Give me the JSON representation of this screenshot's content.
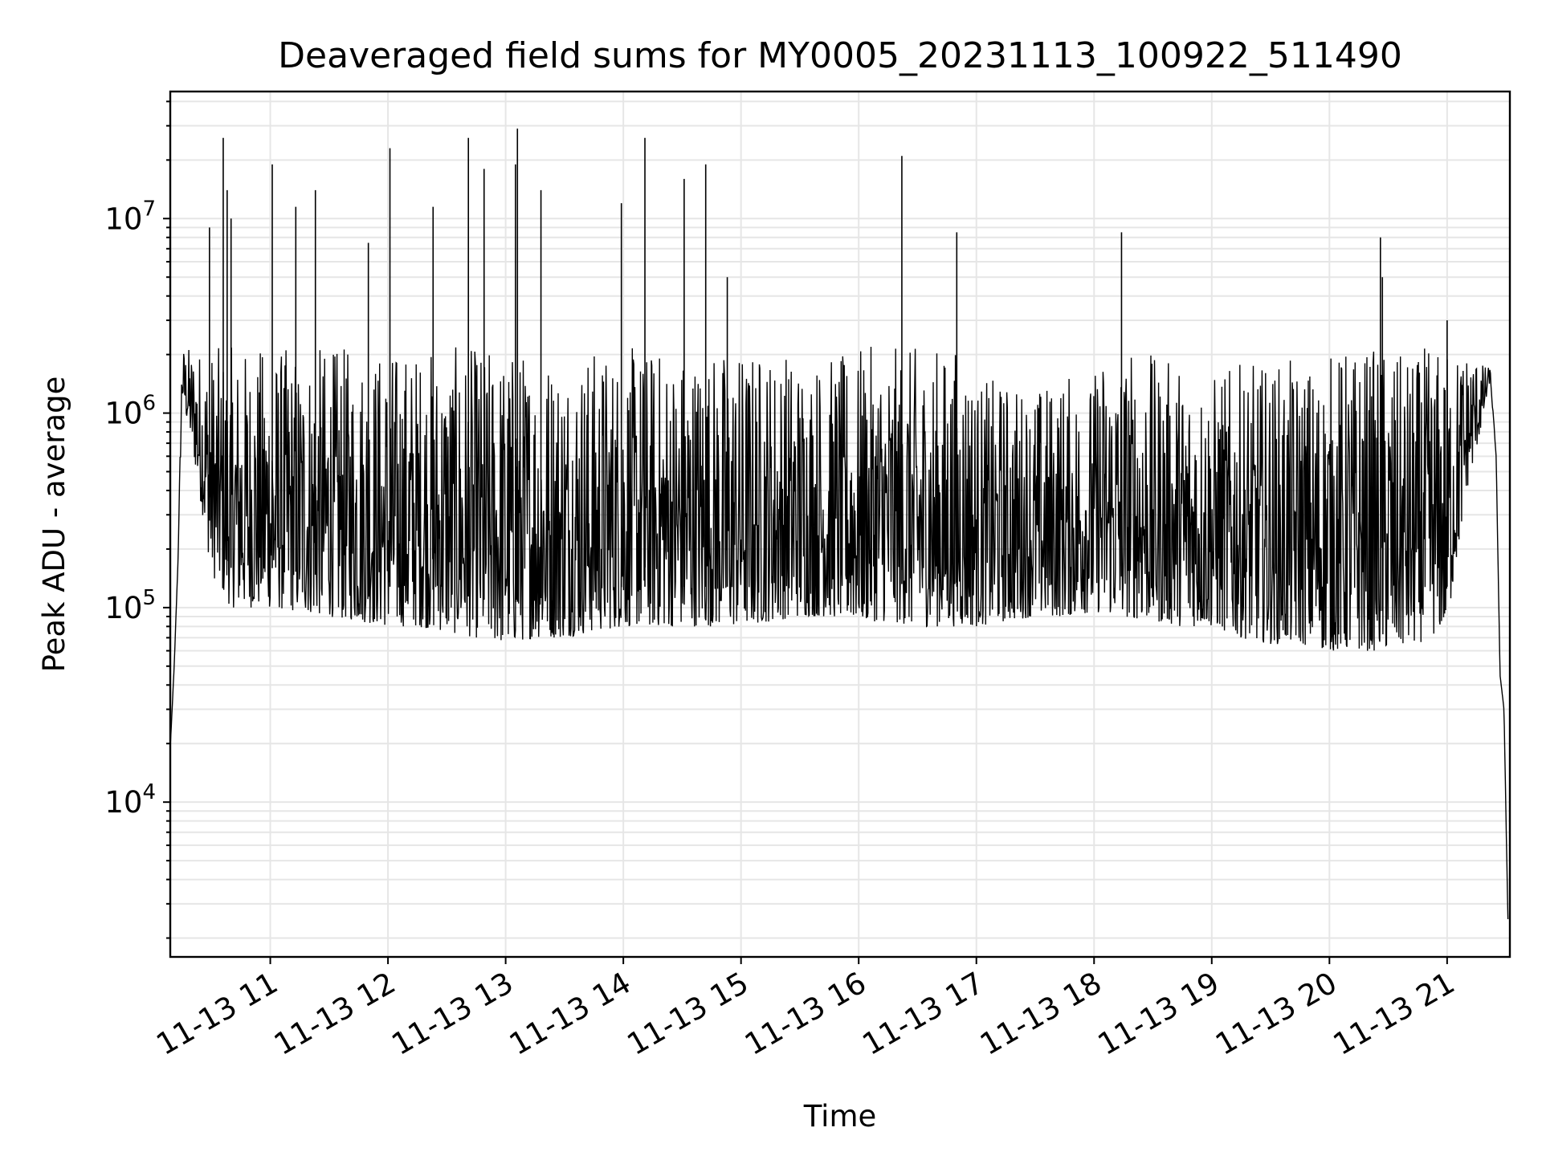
{
  "chart_data": {
    "type": "line",
    "title": "Deaveraged field sums for MY0005_20231113_100922_511490",
    "xlabel": "Time",
    "ylabel": "Peak ADU - average",
    "x_scale": "time",
    "y_scale": "log",
    "xlim": [
      "2023-11-13 10:09",
      "2023-11-13 21:32"
    ],
    "ylim": [
      1600,
      45000000
    ],
    "grid": "both (major and minor)",
    "legend": "none",
    "x_ticks": [
      {
        "value": "2023-11-13 11:00",
        "label": "11-13 11"
      },
      {
        "value": "2023-11-13 12:00",
        "label": "11-13 12"
      },
      {
        "value": "2023-11-13 13:00",
        "label": "11-13 13"
      },
      {
        "value": "2023-11-13 14:00",
        "label": "11-13 14"
      },
      {
        "value": "2023-11-13 15:00",
        "label": "11-13 15"
      },
      {
        "value": "2023-11-13 16:00",
        "label": "11-13 16"
      },
      {
        "value": "2023-11-13 17:00",
        "label": "11-13 17"
      },
      {
        "value": "2023-11-13 18:00",
        "label": "11-13 18"
      },
      {
        "value": "2023-11-13 19:00",
        "label": "11-13 19"
      },
      {
        "value": "2023-11-13 20:00",
        "label": "11-13 20"
      },
      {
        "value": "2023-11-13 21:00",
        "label": "11-13 21"
      }
    ],
    "y_ticks": [
      {
        "value": 10000,
        "base": "10",
        "exp": "4"
      },
      {
        "value": 100000,
        "base": "10",
        "exp": "5"
      },
      {
        "value": 1000000,
        "base": "10",
        "exp": "6"
      },
      {
        "value": 10000000,
        "base": "10",
        "exp": "7"
      }
    ],
    "series": [
      {
        "color": "#000000",
        "x": [
          "2023-11-13 10:09",
          "2023-11-13 10:11",
          "2023-11-13 10:13",
          "2023-11-13 10:15",
          "2023-11-13 10:20",
          "2023-11-13 10:30",
          "2023-11-13 10:40",
          "2023-11-13 10:50",
          "2023-11-13 11:00",
          "2023-11-13 11:15",
          "2023-11-13 11:30",
          "2023-11-13 11:45",
          "2023-11-13 12:00",
          "2023-11-13 12:15",
          "2023-11-13 12:30",
          "2023-11-13 12:45",
          "2023-11-13 13:00",
          "2023-11-13 13:15",
          "2023-11-13 13:30",
          "2023-11-13 13:45",
          "2023-11-13 14:00",
          "2023-11-13 14:15",
          "2023-11-13 14:30",
          "2023-11-13 14:45",
          "2023-11-13 15:00",
          "2023-11-13 15:15",
          "2023-11-13 15:30",
          "2023-11-13 15:45",
          "2023-11-13 16:00",
          "2023-11-13 16:15",
          "2023-11-13 16:30",
          "2023-11-13 16:45",
          "2023-11-13 17:00",
          "2023-11-13 17:15",
          "2023-11-13 17:30",
          "2023-11-13 17:45",
          "2023-11-13 18:00",
          "2023-11-13 18:15",
          "2023-11-13 18:30",
          "2023-11-13 18:45",
          "2023-11-13 19:00",
          "2023-11-13 19:15",
          "2023-11-13 19:30",
          "2023-11-13 19:45",
          "2023-11-13 20:00",
          "2023-11-13 20:15",
          "2023-11-13 20:30",
          "2023-11-13 20:45",
          "2023-11-13 21:00",
          "2023-11-13 21:10",
          "2023-11-13 21:18",
          "2023-11-13 21:22",
          "2023-11-13 21:25",
          "2023-11-13 21:27",
          "2023-11-13 21:29",
          "2023-11-13 21:31"
        ],
        "low": [
          19000,
          50000,
          180000,
          1200000,
          700000,
          150000,
          100000,
          100000,
          100000,
          95000,
          90000,
          85000,
          80000,
          80000,
          75000,
          70000,
          65000,
          70000,
          70000,
          75000,
          80000,
          80000,
          80000,
          80000,
          80000,
          85000,
          90000,
          90000,
          85000,
          85000,
          80000,
          80000,
          80000,
          85000,
          90000,
          90000,
          95000,
          90000,
          85000,
          80000,
          80000,
          70000,
          65000,
          65000,
          60000,
          60000,
          60000,
          65000,
          80000,
          400000,
          900000,
          1500000,
          600000,
          45000,
          30000,
          2500
        ],
        "high": [
          19000,
          50000,
          180000,
          2400000,
          5000000,
          26000000,
          10000000,
          4500000,
          19000000,
          14000000,
          5000000,
          7500000,
          23000000,
          11500000,
          26000000,
          18000000,
          29000000,
          14000000,
          3000000,
          12500000,
          26000000,
          12000000,
          19000000,
          5000000,
          2500000,
          2300000,
          2100000,
          2000000,
          2000000,
          21000000,
          2000000,
          8500000,
          1500000,
          1500000,
          1400000,
          1600000,
          1600000,
          8500000,
          1900000,
          1900000,
          1600000,
          1800000,
          1800000,
          1900000,
          1900000,
          8000000,
          2000000,
          2000000,
          3000000,
          2400000,
          1800000,
          1700000,
          600000,
          45000,
          30000,
          2500
        ],
        "spikes": [
          {
            "x": "2023-11-13 10:29",
            "y": 9000000
          },
          {
            "x": "2023-11-13 10:36",
            "y": 26000000
          },
          {
            "x": "2023-11-13 10:38",
            "y": 14000000
          },
          {
            "x": "2023-11-13 10:40",
            "y": 10000000
          },
          {
            "x": "2023-11-13 11:01",
            "y": 19000000
          },
          {
            "x": "2023-11-13 11:13",
            "y": 11500000
          },
          {
            "x": "2023-11-13 11:23",
            "y": 14000000
          },
          {
            "x": "2023-11-13 11:50",
            "y": 7500000
          },
          {
            "x": "2023-11-13 12:01",
            "y": 23000000
          },
          {
            "x": "2023-11-13 12:23",
            "y": 11500000
          },
          {
            "x": "2023-11-13 12:41",
            "y": 26000000
          },
          {
            "x": "2023-11-13 12:49",
            "y": 18000000
          },
          {
            "x": "2023-11-13 13:05",
            "y": 19000000
          },
          {
            "x": "2023-11-13 13:06",
            "y": 29000000
          },
          {
            "x": "2023-11-13 13:18",
            "y": 14000000
          },
          {
            "x": "2023-11-13 13:59",
            "y": 12000000
          },
          {
            "x": "2023-11-13 14:11",
            "y": 26000000
          },
          {
            "x": "2023-11-13 14:31",
            "y": 16000000
          },
          {
            "x": "2023-11-13 14:42",
            "y": 19000000
          },
          {
            "x": "2023-11-13 14:53",
            "y": 5000000
          },
          {
            "x": "2023-11-13 16:22",
            "y": 21000000
          },
          {
            "x": "2023-11-13 16:50",
            "y": 8500000
          },
          {
            "x": "2023-11-13 18:14",
            "y": 8500000
          },
          {
            "x": "2023-11-13 20:26",
            "y": 8000000
          },
          {
            "x": "2023-11-13 20:27",
            "y": 5000000
          },
          {
            "x": "2023-11-13 21:00",
            "y": 3000000
          }
        ]
      }
    ]
  }
}
